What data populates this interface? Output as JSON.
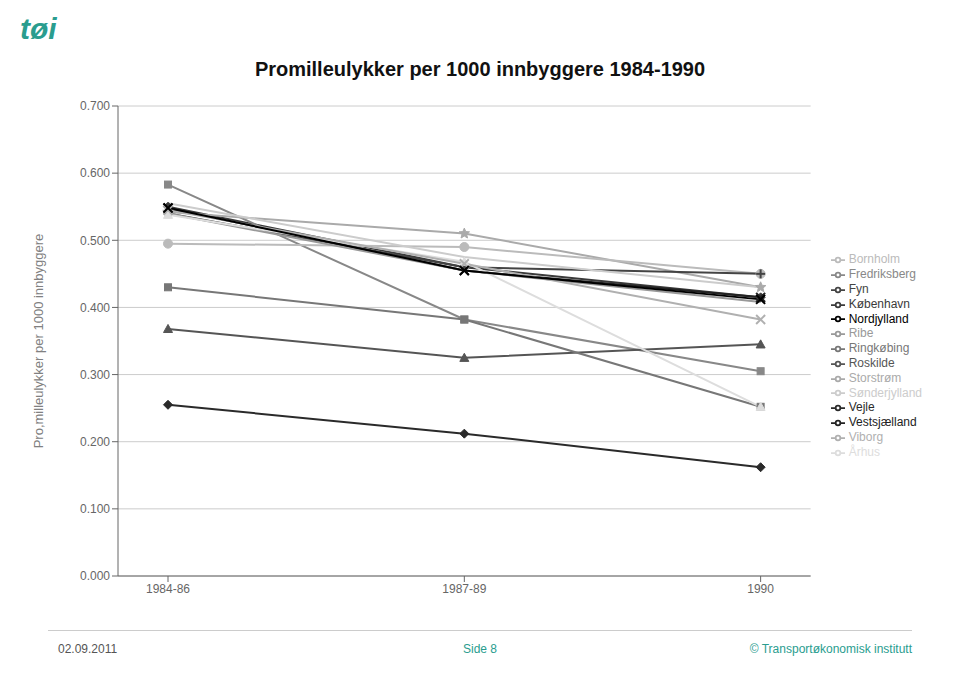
{
  "chart_data": {
    "type": "line",
    "title": "Promilleulykker per 1000 innbyggere 1984-1990",
    "ylabel": "Pro,milleulykker per 1000 innbyggere",
    "categories": [
      "1984-86",
      "1987-89",
      "1990"
    ],
    "series": [
      {
        "name": "København",
        "color": "#3a3a3a",
        "marker": "diamond",
        "values": [
          0.55,
          0.46,
          0.415
        ]
      },
      {
        "name": "Fredriksberg",
        "color": "#888888",
        "marker": "square",
        "values": [
          0.583,
          0.382,
          0.305
        ]
      },
      {
        "name": "Roskilde",
        "color": "#555555",
        "marker": "triangle",
        "values": [
          0.368,
          0.325,
          0.345
        ]
      },
      {
        "name": "Vestsjælland",
        "color": "#222222",
        "marker": "x",
        "values": [
          0.548,
          0.455,
          0.415
        ]
      },
      {
        "name": "Storstrøm",
        "color": "#aaaaaa",
        "marker": "star",
        "values": [
          0.542,
          0.51,
          0.43
        ]
      },
      {
        "name": "Bornholm",
        "color": "#bbbbbb",
        "marker": "circle",
        "values": [
          0.495,
          0.49,
          0.45
        ]
      },
      {
        "name": "Fyn",
        "color": "#444444",
        "marker": "plus",
        "values": [
          0.54,
          0.46,
          0.45
        ]
      },
      {
        "name": "Sønderjylland",
        "color": "#cccccc",
        "marker": "none",
        "values": [
          0.555,
          0.475,
          0.43
        ]
      },
      {
        "name": "Ribe",
        "color": "#999999",
        "marker": "none",
        "values": [
          0.54,
          0.455,
          0.408
        ]
      },
      {
        "name": "Vejle",
        "color": "#2a2a2a",
        "marker": "diamond",
        "values": [
          0.255,
          0.212,
          0.162
        ]
      },
      {
        "name": "Ringkøbing",
        "color": "#777777",
        "marker": "square",
        "values": [
          0.43,
          0.382,
          0.252
        ]
      },
      {
        "name": "Århus",
        "color": "#dddddd",
        "marker": "triangle",
        "values": [
          0.538,
          0.468,
          0.252
        ]
      },
      {
        "name": "Viborg",
        "color": "#b0b0b0",
        "marker": "x",
        "values": [
          0.545,
          0.465,
          0.382
        ]
      },
      {
        "name": "Nordjylland",
        "color": "#000000",
        "marker": "x",
        "values": [
          0.548,
          0.455,
          0.412
        ]
      }
    ],
    "ylim": [
      0.0,
      0.7
    ],
    "yticks": [
      {
        "value": 0.0,
        "label": "0.000"
      },
      {
        "value": 0.1,
        "label": "0.100"
      },
      {
        "value": 0.2,
        "label": "0.200"
      },
      {
        "value": 0.3,
        "label": "0.300"
      },
      {
        "value": 0.4,
        "label": "0.400"
      },
      {
        "value": 0.5,
        "label": "0.500"
      },
      {
        "value": 0.6,
        "label": "0.600"
      },
      {
        "value": 0.7,
        "label": "0.700"
      }
    ],
    "grid": true,
    "legend": "right",
    "annotations": [
      "tøi",
      "02.09.2011",
      "Side 8",
      "© Transportøkonomisk institutt"
    ]
  }
}
